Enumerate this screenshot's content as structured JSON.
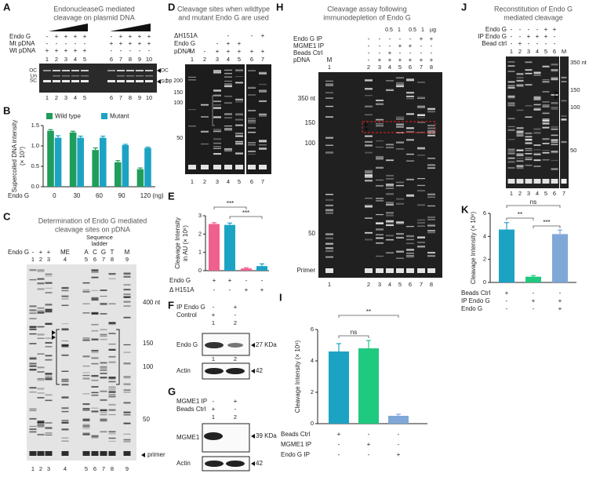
{
  "panels": {
    "A": {
      "letter": "A",
      "title_lines": [
        "EndonucleaseG mediated",
        "cleavage on plasmid DNA"
      ],
      "rows": [
        {
          "label": "Endo G",
          "signs": [
            "-",
            "+",
            "+",
            "+",
            "+",
            "-",
            "+",
            "+",
            "+",
            "+"
          ]
        },
        {
          "label": "Mt pDNA",
          "signs": [
            "-",
            "-",
            "-",
            "-",
            "-",
            "+",
            "+",
            "+",
            "+",
            "+"
          ]
        },
        {
          "label": "Wt pDNA",
          "signs": [
            "+",
            "+",
            "+",
            "+",
            "+",
            "-",
            "-",
            "-",
            "-",
            "-"
          ]
        }
      ],
      "lanes_top": [
        "1",
        "2",
        "3",
        "4",
        "5",
        "6",
        "7",
        "8",
        "9",
        "10"
      ],
      "lanes_bottom": [
        "1",
        "2",
        "3",
        "4",
        "5",
        "6",
        "7",
        "8",
        "9",
        "10"
      ],
      "left_marks": [
        "OC",
        "Lin",
        "SC"
      ],
      "right_marks": [
        "OC",
        "SC"
      ]
    },
    "C": {
      "letter": "C",
      "title_lines": [
        "Determination of Endo G mediated",
        "cleavage sites  on pDNA"
      ],
      "row_label": "Endo G",
      "signs": [
        "-",
        "+",
        "+"
      ],
      "me": "ME",
      "ladder_lines": [
        "Sequence",
        "ladder"
      ],
      "ladder": [
        "A",
        "C",
        "G",
        "T"
      ],
      "marker": "M",
      "lanes_top": [
        "1",
        "2",
        "3",
        "4",
        "5",
        "6",
        "7",
        "8",
        "9"
      ],
      "lanes_bottom": [
        "1",
        "2",
        "3",
        "4",
        "5",
        "6",
        "7",
        "8",
        "9"
      ],
      "sizes": [
        "400 nt",
        "150",
        "100",
        "50"
      ],
      "primer": "primer"
    },
    "D": {
      "letter": "D",
      "title_lines": [
        "Cleavage sites when wildtype",
        "and mutant Endo G are used"
      ],
      "rows": [
        {
          "label": "ΔH151A",
          "signs": [
            "-",
            "-",
            "+"
          ]
        },
        {
          "label": "Endo G",
          "signs": [
            "-",
            "+",
            "+"
          ]
        },
        {
          "label": "pDNA",
          "signs": [
            "M",
            "-",
            "+",
            "+",
            "+",
            "+",
            "+"
          ]
        }
      ],
      "lanes_top": [
        "1",
        "2",
        "3",
        "4",
        "5",
        "6",
        "7"
      ],
      "lanes_bottom": [
        "1",
        "2",
        "3",
        "4",
        "5",
        "6",
        "7"
      ],
      "sizes": [
        "bp 200",
        "150",
        "100",
        "50"
      ]
    },
    "F": {
      "letter": "F",
      "rows": [
        {
          "label": "IP Endo G",
          "signs": [
            "-",
            "+"
          ]
        },
        {
          "label": "Control",
          "signs": [
            "+",
            "-"
          ]
        }
      ],
      "lanes": [
        "1",
        "2"
      ],
      "lanes2": [
        "1",
        "2"
      ],
      "blots": [
        {
          "label": "Endo G",
          "size": "27 KDa"
        },
        {
          "label": "Actin",
          "size": "42"
        }
      ]
    },
    "G": {
      "letter": "G",
      "rows": [
        {
          "label": "MGME1 IP",
          "signs": [
            "-",
            "+"
          ]
        },
        {
          "label": "Beads Ctrl",
          "signs": [
            "+",
            "-"
          ]
        }
      ],
      "lanes": [
        "1",
        "2"
      ],
      "blots": [
        {
          "label": "MGME1",
          "size": "39 KDa"
        },
        {
          "label": "Actin",
          "size": "42"
        }
      ]
    },
    "H": {
      "letter": "H",
      "title_lines": [
        "Cleavage assay following",
        "immunodepletion of Endo G"
      ],
      "amounts": [
        "0.5",
        "1",
        "0.5",
        "1",
        "µg"
      ],
      "rows": [
        {
          "label": "Endo G IP",
          "signs": [
            "-",
            "-",
            "-",
            "-",
            "-",
            "+",
            "+"
          ]
        },
        {
          "label": "MGME1 IP",
          "signs": [
            "-",
            "-",
            "-",
            "+",
            "+",
            "-",
            "-"
          ]
        },
        {
          "label": "Beads Ctrl",
          "signs": [
            "-",
            "-",
            "+",
            "-",
            "-",
            "-",
            "-"
          ]
        },
        {
          "label": "pDNA",
          "signs": [
            "M",
            "-",
            "+",
            "+",
            "+",
            "+",
            "+",
            "+"
          ]
        }
      ],
      "lanes_top": [
        "1",
        "2",
        "3",
        "4",
        "5",
        "6",
        "7",
        "8"
      ],
      "lanes_bottom": [
        "1",
        "2",
        "3",
        "4",
        "5",
        "6",
        "7",
        "8"
      ],
      "sizes": [
        "350 nt",
        "150",
        "100",
        "50"
      ],
      "primer": "Primer"
    },
    "J": {
      "letter": "J",
      "title_lines": [
        "Reconstitution of Endo G",
        "mediated cleavage"
      ],
      "rows": [
        {
          "label": "Endo G",
          "signs": [
            "-",
            "-",
            "-",
            "-",
            "+",
            "+"
          ]
        },
        {
          "label": "IP Endo G",
          "signs": [
            "-",
            "-",
            "+",
            "+",
            "+",
            "-"
          ]
        },
        {
          "label": "Bead ctrl",
          "signs": [
            "-",
            "+",
            "-",
            "-",
            "-",
            "-"
          ]
        }
      ],
      "lanes_top": [
        "1",
        "2",
        "3",
        "4",
        "5",
        "6",
        "M"
      ],
      "lanes_bottom": [
        "1",
        "2",
        "3",
        "4",
        "5",
        "6",
        "7"
      ],
      "sizes": [
        "350 nt",
        "150",
        "100",
        "50"
      ]
    }
  },
  "chart_data": [
    {
      "type": "grouped-bar",
      "panel": "B",
      "ylabel_lines": [
        "Supercoiled DNA intensity",
        "(× 10⁷)"
      ],
      "xlabel": "Endo G",
      "categories": [
        "0",
        "30",
        "60",
        "90",
        "120 (ng)"
      ],
      "series": [
        {
          "name": "Wild type",
          "color": "#1f9d5b",
          "values": [
            1.37,
            1.33,
            0.9,
            0.6,
            0.43
          ],
          "errors": [
            0.03,
            0.03,
            0.05,
            0.04,
            0.03
          ]
        },
        {
          "name": "Mutant",
          "color": "#1ca3c4",
          "values": [
            1.2,
            1.2,
            1.2,
            1.02,
            0.95
          ],
          "errors": [
            0.05,
            0.04,
            0.04,
            0.02,
            0.02
          ]
        }
      ],
      "ylim": [
        0,
        1.5
      ],
      "yticks": [
        {
          "value": 0,
          "label": "0.0"
        },
        0.5,
        {
          "value": 1,
          "label": "1.0"
        },
        1.5
      ]
    },
    {
      "type": "bar",
      "panel": "E",
      "ylabel_lines": [
        "Cleavage Intensity",
        "in AU (× 10⁶)"
      ],
      "values": [
        2.55,
        2.5,
        0.12,
        0.25
      ],
      "errors": [
        0.07,
        0.1,
        0.04,
        0.12
      ],
      "colors": [
        "#f0608e",
        "#1ca3c4",
        "#f0608e",
        "#1ca3c4"
      ],
      "conditions": [
        {
          "label": "Endo G",
          "signs": [
            "+",
            "+",
            "-",
            "-"
          ]
        },
        {
          "label": "Δ H151A",
          "signs": [
            "-",
            "-",
            "+",
            "+"
          ]
        }
      ],
      "annotations": [
        "***",
        "***"
      ],
      "ylim": [
        0,
        3
      ],
      "yticks": [
        0,
        1,
        2,
        3
      ]
    },
    {
      "type": "bar",
      "panel": "I",
      "ylabel_lines": [
        "Cleavage Intensity (× 10⁶)"
      ],
      "values": [
        4.6,
        4.8,
        0.5
      ],
      "errors": [
        0.5,
        0.5,
        0.1
      ],
      "colors": [
        "#1ca3c4",
        "#1fc97f",
        "#7fa8d8"
      ],
      "conditions": [
        {
          "label": "Beads Ctrl",
          "signs": [
            "+",
            "-",
            "-"
          ]
        },
        {
          "label": "MGME1 IP",
          "signs": [
            "-",
            "+",
            "-"
          ]
        },
        {
          "label": "Endo G IP",
          "signs": [
            "-",
            "-",
            "+"
          ]
        }
      ],
      "annotations": [
        "ns",
        "**"
      ],
      "ylim": [
        0,
        6
      ],
      "yticks": [
        0,
        2,
        4,
        6
      ]
    },
    {
      "type": "bar",
      "panel": "K",
      "ylabel_lines": [
        "Cleavage Intensity (× 10⁶)"
      ],
      "values": [
        4.6,
        0.5,
        4.2
      ],
      "errors": [
        0.6,
        0.1,
        0.35
      ],
      "colors": [
        "#1ca3c4",
        "#1fc97f",
        "#7fa8d8"
      ],
      "conditions": [
        {
          "label": "Beads Ctrl",
          "signs": [
            "+",
            "-",
            "-"
          ]
        },
        {
          "label": "IP Endo G",
          "signs": [
            "-",
            "+",
            "+"
          ]
        },
        {
          "label": "Endo G",
          "signs": [
            "-",
            "-",
            "+"
          ]
        }
      ],
      "annotations": [
        "**",
        "***",
        "ns"
      ],
      "ylim": [
        0,
        6
      ],
      "yticks": [
        0,
        2,
        4,
        6
      ]
    }
  ]
}
